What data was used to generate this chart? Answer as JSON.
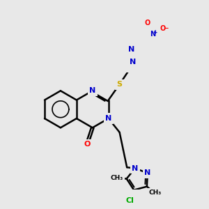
{
  "bg_color": "#e8e8e8",
  "bond_color": "#000000",
  "bond_width": 1.8,
  "atom_colors": {
    "N": "#0000cc",
    "O": "#ff0000",
    "S": "#ccaa00",
    "Cl": "#00aa00",
    "C": "#000000"
  },
  "figsize": [
    3.0,
    3.0
  ],
  "dpi": 100
}
